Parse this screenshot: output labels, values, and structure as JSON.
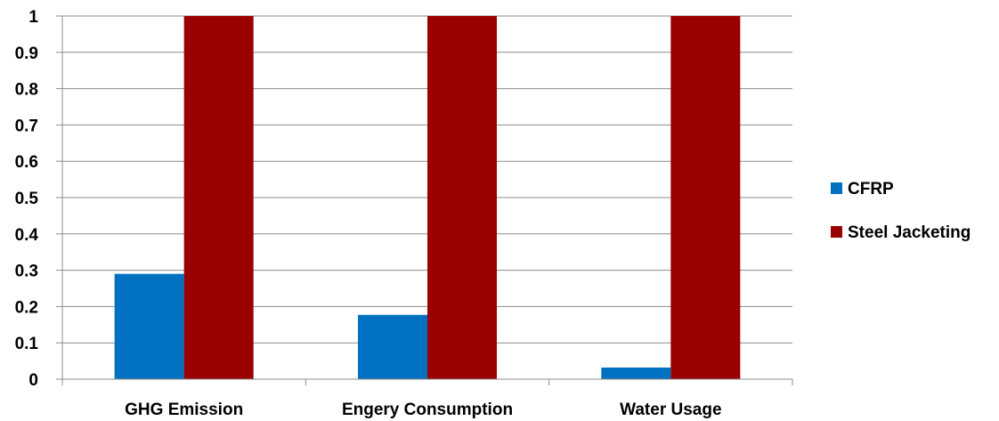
{
  "chart_data": {
    "type": "bar",
    "categories": [
      "GHG Emission",
      "Engery Consumption",
      "Water Usage"
    ],
    "series": [
      {
        "name": "CFRP",
        "values": [
          0.29,
          0.177,
          0.032
        ],
        "color": "#0070C0"
      },
      {
        "name": "Steel Jacketing",
        "values": [
          1.0,
          1.0,
          1.0
        ],
        "color": "#990000"
      }
    ],
    "ylim": [
      0,
      1
    ],
    "yticks": [
      "0",
      "0.1",
      "0.2",
      "0.3",
      "0.4",
      "0.5",
      "0.6",
      "0.7",
      "0.8",
      "0.9",
      "1"
    ],
    "grid": true,
    "legend_position": "right"
  }
}
